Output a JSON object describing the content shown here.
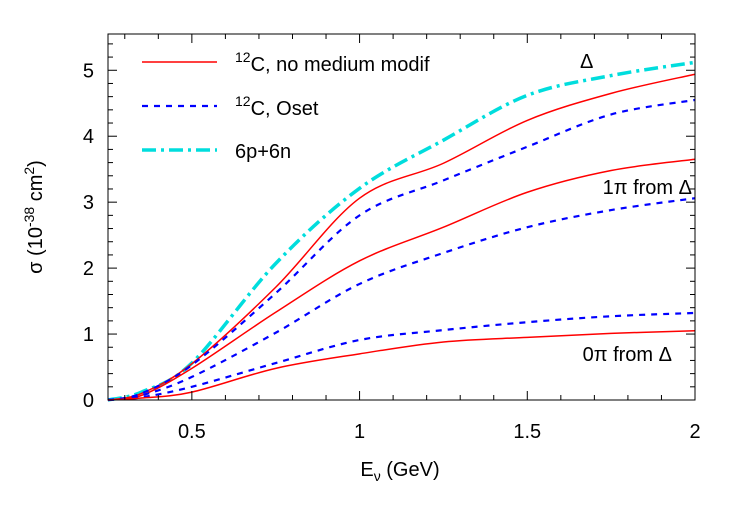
{
  "chart_data": {
    "type": "line",
    "xlabel": "E",
    "xlabel_sub": "ν",
    "xlabel_unit": " (GeV)",
    "ylabel": "σ (10",
    "ylabel_exp": "-38",
    "ylabel_mid": " cm",
    "ylabel_exp2": "2",
    "ylabel_end": ")",
    "xlim": [
      0.25,
      2
    ],
    "ylim": [
      0,
      5.55
    ],
    "xticks": [
      0.5,
      1,
      1.5,
      2
    ],
    "xtick_labels": [
      "0.5",
      "1",
      "1.5",
      "2"
    ],
    "yticks": [
      0,
      1,
      2,
      3,
      4,
      5
    ],
    "ytick_labels": [
      "0",
      "1",
      "2",
      "3",
      "4",
      "5"
    ],
    "grid": false,
    "legend_position": "top-left",
    "legend": [
      {
        "sup": "12",
        "label": "C, no medium modif",
        "color": "#ff0000",
        "style": "solid"
      },
      {
        "sup": "12",
        "label": "C,  Oset",
        "color": "#0000ff",
        "style": "dashed"
      },
      {
        "sup": "",
        "label": "6p+6n",
        "color": "#00dddd",
        "style": "dashdot"
      }
    ],
    "annotations": [
      "Δ",
      "1π from Δ",
      "0π from Δ"
    ],
    "x": [
      0.25,
      0.35,
      0.5,
      0.75,
      1,
      1.25,
      1.5,
      1.75,
      2
    ],
    "series": [
      {
        "group": "6p+6n Δ",
        "color": "#00dddd",
        "style": "dashdot",
        "values": [
          0,
          0.12,
          0.56,
          2.07,
          3.21,
          3.94,
          4.62,
          4.92,
          5.12
        ]
      },
      {
        "group": "no medium modif Δ",
        "color": "#ff0000",
        "style": "solid",
        "values": [
          0,
          0.1,
          0.55,
          1.71,
          3.06,
          3.59,
          4.24,
          4.65,
          4.94
        ]
      },
      {
        "group": "Oset Δ",
        "color": "#0000ff",
        "style": "dashed",
        "values": [
          0,
          0.1,
          0.53,
          1.62,
          2.8,
          3.33,
          3.84,
          4.33,
          4.55
        ]
      },
      {
        "group": "no medium modif 1π from Δ",
        "color": "#ff0000",
        "style": "solid",
        "values": [
          0,
          0.07,
          0.48,
          1.33,
          2.11,
          2.62,
          3.15,
          3.48,
          3.65
        ]
      },
      {
        "group": "Oset 1π from Δ",
        "color": "#0000ff",
        "style": "dashed",
        "values": [
          0,
          0.07,
          0.35,
          1.02,
          1.76,
          2.23,
          2.62,
          2.88,
          3.06
        ]
      },
      {
        "group": "Oset 0π from Δ",
        "color": "#0000ff",
        "style": "dashed",
        "values": [
          0,
          0.04,
          0.2,
          0.56,
          0.91,
          1.06,
          1.18,
          1.27,
          1.32
        ]
      },
      {
        "group": "no medium modif 0π from Δ",
        "color": "#ff0000",
        "style": "solid",
        "values": [
          0,
          0.03,
          0.12,
          0.48,
          0.7,
          0.88,
          0.95,
          1.01,
          1.05
        ]
      }
    ]
  }
}
